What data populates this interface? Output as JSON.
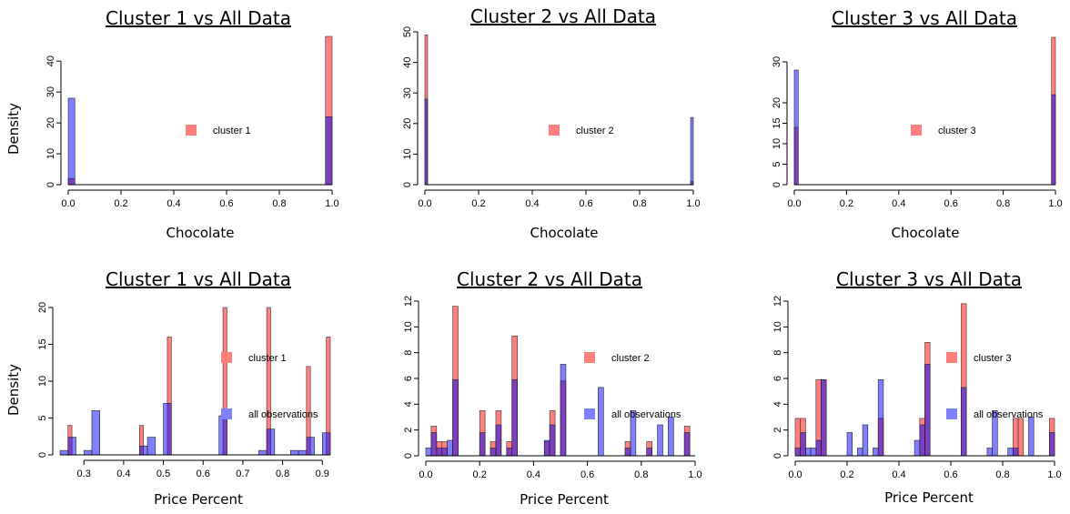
{
  "colors": {
    "cluster": "#ff7f7f",
    "all": "#7f7fff",
    "overlap": "#7f00bf"
  },
  "chart_data": [
    {
      "type": "bar",
      "title": "Cluster 1 vs All Data",
      "xlabel": "Chocolate",
      "ylabel": "Density",
      "xlim": [
        0,
        1
      ],
      "ylim": [
        0,
        48
      ],
      "xticks": [
        "0.0",
        "0.2",
        "0.4",
        "0.6",
        "0.8",
        "1.0"
      ],
      "yticks": [
        "0",
        "10",
        "20",
        "30",
        "40"
      ],
      "legend": [
        "cluster 1"
      ],
      "series": [
        {
          "name": "cluster 1",
          "bins": [
            [
              0.0,
              0.025,
              2
            ],
            [
              0.975,
              1.0,
              48
            ]
          ]
        },
        {
          "name": "all observations",
          "bins": [
            [
              0.0,
              0.025,
              28
            ],
            [
              0.975,
              1.0,
              22
            ]
          ]
        }
      ]
    },
    {
      "type": "bar",
      "title": "Cluster 2 vs All Data",
      "xlabel": "Chocolate",
      "ylabel": "",
      "xlim": [
        0,
        1
      ],
      "ylim": [
        0,
        50
      ],
      "xticks": [
        "0.0",
        "0.2",
        "0.4",
        "0.6",
        "0.8",
        "1.0"
      ],
      "yticks": [
        "0",
        "10",
        "20",
        "30",
        "40",
        "50"
      ],
      "legend": [
        "cluster 2"
      ],
      "series": [
        {
          "name": "cluster 2",
          "bins": [
            [
              0.0,
              0.01,
              49
            ],
            [
              0.99,
              1.0,
              1
            ]
          ]
        },
        {
          "name": "all observations",
          "bins": [
            [
              0.0,
              0.01,
              28
            ],
            [
              0.99,
              1.0,
              22
            ]
          ]
        }
      ]
    },
    {
      "type": "bar",
      "title": "Cluster 3 vs All Data",
      "xlabel": "Chocolate",
      "ylabel": "",
      "xlim": [
        0,
        1
      ],
      "ylim": [
        0,
        36
      ],
      "xticks": [
        "0.0",
        "0.2",
        "0.4",
        "0.6",
        "0.8",
        "1.0"
      ],
      "yticks": [
        "0",
        "5",
        "10",
        "15",
        "20",
        "30"
      ],
      "legend": [
        "cluster 3"
      ],
      "series": [
        {
          "name": "cluster 3",
          "bins": [
            [
              0.0,
              0.015,
              14
            ],
            [
              0.985,
              1.0,
              36
            ]
          ]
        },
        {
          "name": "all observations",
          "bins": [
            [
              0.0,
              0.015,
              28
            ],
            [
              0.985,
              1.0,
              22
            ]
          ]
        }
      ]
    },
    {
      "type": "bar",
      "title": "Cluster 1 vs All Data",
      "xlabel": "Price Percent",
      "ylabel": "Density",
      "xlim": [
        0.24,
        0.92
      ],
      "ylim": [
        0,
        20
      ],
      "xticks": [
        "0.3",
        "0.4",
        "0.5",
        "0.6",
        "0.7",
        "0.8",
        "0.9"
      ],
      "yticks": [
        "0",
        "5",
        "10",
        "15",
        "20"
      ],
      "legend": [
        "cluster 1",
        "all observations"
      ],
      "series": [
        {
          "name": "cluster 1",
          "bins": [
            [
              0.26,
              0.27,
              4
            ],
            [
              0.44,
              0.45,
              4
            ],
            [
              0.51,
              0.52,
              16
            ],
            [
              0.65,
              0.66,
              20
            ],
            [
              0.76,
              0.77,
              20
            ],
            [
              0.86,
              0.87,
              12
            ],
            [
              0.91,
              0.92,
              16
            ]
          ]
        },
        {
          "name": "all observations",
          "bins": [
            [
              0.24,
              0.26,
              0.6
            ],
            [
              0.26,
              0.28,
              2.4
            ],
            [
              0.3,
              0.32,
              0.6
            ],
            [
              0.32,
              0.34,
              6
            ],
            [
              0.44,
              0.46,
              1.2
            ],
            [
              0.46,
              0.48,
              2.4
            ],
            [
              0.5,
              0.52,
              7
            ],
            [
              0.64,
              0.66,
              5.3
            ],
            [
              0.74,
              0.76,
              0.6
            ],
            [
              0.76,
              0.78,
              3.5
            ],
            [
              0.82,
              0.84,
              0.6
            ],
            [
              0.84,
              0.86,
              0.6
            ],
            [
              0.86,
              0.88,
              2.4
            ],
            [
              0.9,
              0.92,
              3
            ]
          ]
        }
      ]
    },
    {
      "type": "bar",
      "title": "Cluster 2 vs All Data",
      "xlabel": "Price Percent",
      "ylabel": "",
      "xlim": [
        0,
        1
      ],
      "ylim": [
        0,
        12
      ],
      "xticks": [
        "0.0",
        "0.2",
        "0.4",
        "0.6",
        "0.8",
        "1.0"
      ],
      "yticks": [
        "0",
        "2",
        "4",
        "6",
        "8",
        "10",
        "12"
      ],
      "legend": [
        "cluster 2",
        "all observations"
      ],
      "series": [
        {
          "name": "cluster 2",
          "bins": [
            [
              0.02,
              0.04,
              2.3
            ],
            [
              0.04,
              0.06,
              1.1
            ],
            [
              0.06,
              0.08,
              1.1
            ],
            [
              0.1,
              0.12,
              11.6
            ],
            [
              0.2,
              0.22,
              3.5
            ],
            [
              0.24,
              0.26,
              1.1
            ],
            [
              0.26,
              0.28,
              3.5
            ],
            [
              0.3,
              0.32,
              1.1
            ],
            [
              0.32,
              0.34,
              9.3
            ],
            [
              0.44,
              0.46,
              1.1
            ],
            [
              0.46,
              0.48,
              3.5
            ],
            [
              0.5,
              0.52,
              5.8
            ],
            [
              0.74,
              0.76,
              1.1
            ],
            [
              0.82,
              0.84,
              1.1
            ],
            [
              0.96,
              0.98,
              2.3
            ]
          ]
        },
        {
          "name": "all observations",
          "bins": [
            [
              0.0,
              0.02,
              0.6
            ],
            [
              0.02,
              0.04,
              1.8
            ],
            [
              0.04,
              0.06,
              0.6
            ],
            [
              0.06,
              0.08,
              0.6
            ],
            [
              0.08,
              0.1,
              1.2
            ],
            [
              0.1,
              0.12,
              5.9
            ],
            [
              0.2,
              0.22,
              1.8
            ],
            [
              0.24,
              0.26,
              0.6
            ],
            [
              0.26,
              0.28,
              2.4
            ],
            [
              0.3,
              0.32,
              0.6
            ],
            [
              0.32,
              0.34,
              5.9
            ],
            [
              0.44,
              0.46,
              1.2
            ],
            [
              0.46,
              0.48,
              2.4
            ],
            [
              0.5,
              0.52,
              7.1
            ],
            [
              0.64,
              0.66,
              5.3
            ],
            [
              0.74,
              0.76,
              0.6
            ],
            [
              0.76,
              0.78,
              3.5
            ],
            [
              0.82,
              0.84,
              0.6
            ],
            [
              0.86,
              0.88,
              2.4
            ],
            [
              0.9,
              0.92,
              3
            ],
            [
              0.96,
              0.98,
              1.8
            ]
          ]
        }
      ]
    },
    {
      "type": "bar",
      "title": "Cluster 3 vs All Data",
      "xlabel": "Price Percent",
      "ylabel": "",
      "xlim": [
        0,
        1
      ],
      "ylim": [
        0,
        12
      ],
      "xticks": [
        "0.0",
        "0.2",
        "0.4",
        "0.6",
        "0.8",
        "1.0"
      ],
      "yticks": [
        "0",
        "2",
        "4",
        "6",
        "8",
        "10",
        "12"
      ],
      "legend": [
        "cluster 3",
        "all observations"
      ],
      "series": [
        {
          "name": "cluster 3",
          "bins": [
            [
              0.0,
              0.02,
              2.9
            ],
            [
              0.02,
              0.04,
              2.9
            ],
            [
              0.08,
              0.1,
              5.9
            ],
            [
              0.1,
              0.12,
              5.9
            ],
            [
              0.32,
              0.34,
              2.9
            ],
            [
              0.48,
              0.5,
              2.9
            ],
            [
              0.5,
              0.52,
              8.8
            ],
            [
              0.64,
              0.66,
              11.8
            ],
            [
              0.84,
              0.86,
              2.9
            ],
            [
              0.86,
              0.88,
              2.9
            ],
            [
              0.98,
              1.0,
              2.9
            ]
          ]
        },
        {
          "name": "all observations",
          "bins": [
            [
              0.0,
              0.02,
              0.6
            ],
            [
              0.02,
              0.04,
              1.8
            ],
            [
              0.04,
              0.06,
              0.6
            ],
            [
              0.06,
              0.08,
              0.6
            ],
            [
              0.08,
              0.1,
              1.2
            ],
            [
              0.1,
              0.12,
              5.9
            ],
            [
              0.2,
              0.22,
              1.8
            ],
            [
              0.24,
              0.26,
              0.6
            ],
            [
              0.26,
              0.28,
              2.4
            ],
            [
              0.3,
              0.32,
              0.6
            ],
            [
              0.32,
              0.34,
              5.9
            ],
            [
              0.46,
              0.48,
              1.2
            ],
            [
              0.48,
              0.5,
              2.4
            ],
            [
              0.5,
              0.52,
              7.1
            ],
            [
              0.64,
              0.66,
              5.3
            ],
            [
              0.74,
              0.76,
              0.6
            ],
            [
              0.76,
              0.78,
              3.5
            ],
            [
              0.82,
              0.84,
              0.6
            ],
            [
              0.84,
              0.86,
              0.6
            ],
            [
              0.9,
              0.92,
              3
            ],
            [
              0.98,
              1.0,
              1.8
            ]
          ]
        }
      ]
    }
  ]
}
